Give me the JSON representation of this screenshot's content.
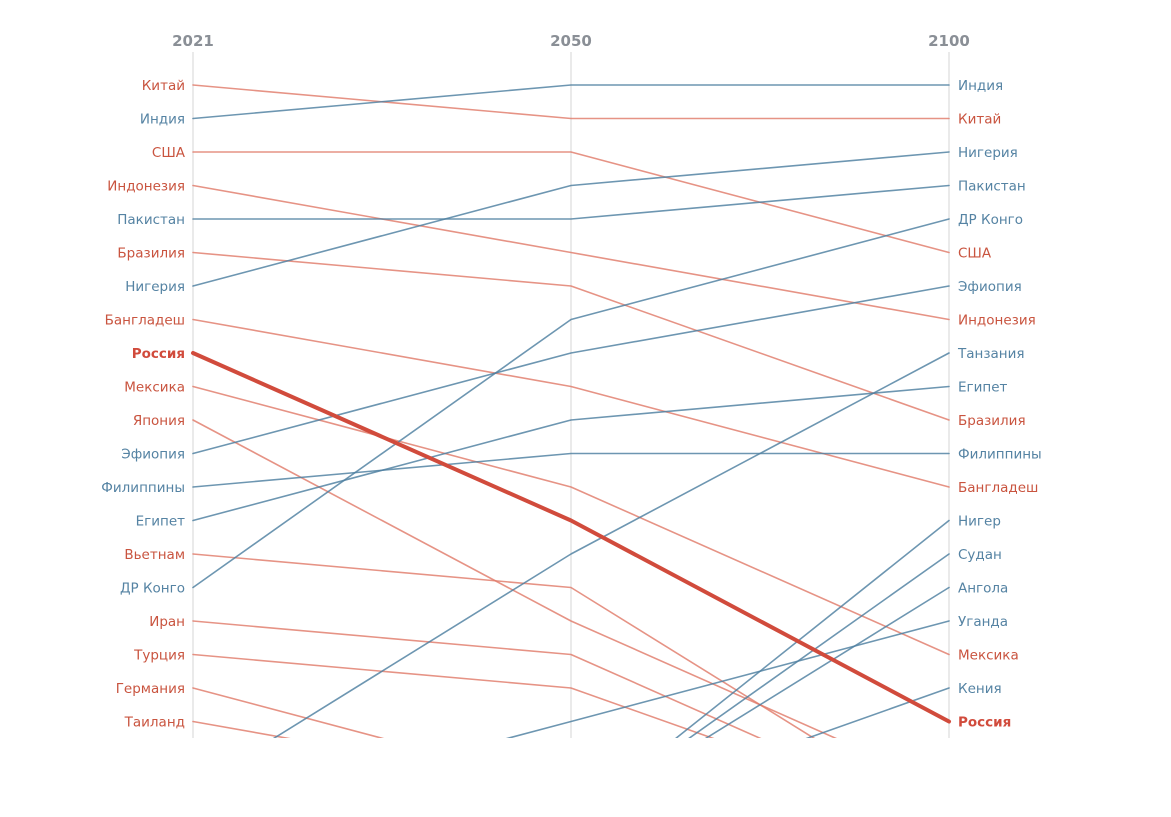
{
  "chart_data": {
    "type": "slope",
    "title": "",
    "years": [
      "2021",
      "2050",
      "2100"
    ],
    "y_axis": "rank (1 = largest population)",
    "colors": {
      "declining": "#e07b6a",
      "rising": "#4d7fa0",
      "highlight": "#d14b3c"
    },
    "highlight": "Россия",
    "series": [
      {
        "name": "Китай",
        "direction": "declining",
        "ranks": [
          1,
          2,
          2
        ]
      },
      {
        "name": "Индия",
        "direction": "rising",
        "ranks": [
          2,
          1,
          1
        ]
      },
      {
        "name": "США",
        "direction": "declining",
        "ranks": [
          3,
          3,
          6
        ]
      },
      {
        "name": "Индонезия",
        "direction": "declining",
        "ranks": [
          4,
          6,
          8
        ]
      },
      {
        "name": "Пакистан",
        "direction": "rising",
        "ranks": [
          5,
          5,
          4
        ]
      },
      {
        "name": "Бразилия",
        "direction": "declining",
        "ranks": [
          6,
          7,
          11
        ]
      },
      {
        "name": "Нигерия",
        "direction": "rising",
        "ranks": [
          7,
          4,
          3
        ]
      },
      {
        "name": "Бангладеш",
        "direction": "declining",
        "ranks": [
          8,
          10,
          13
        ]
      },
      {
        "name": "Россия",
        "direction": "declining",
        "ranks": [
          9,
          14,
          20
        ]
      },
      {
        "name": "Мексика",
        "direction": "declining",
        "ranks": [
          10,
          13,
          18
        ]
      },
      {
        "name": "Япония",
        "direction": "declining",
        "ranks": [
          11,
          17,
          22
        ]
      },
      {
        "name": "Эфиопия",
        "direction": "rising",
        "ranks": [
          12,
          9,
          7
        ]
      },
      {
        "name": "Филиппины",
        "direction": "rising",
        "ranks": [
          13,
          12,
          12
        ]
      },
      {
        "name": "Египет",
        "direction": "rising",
        "ranks": [
          14,
          11,
          10
        ]
      },
      {
        "name": "Вьетнам",
        "direction": "declining",
        "ranks": [
          15,
          16,
          23
        ]
      },
      {
        "name": "ДР Конго",
        "direction": "rising",
        "ranks": [
          16,
          8,
          5
        ]
      },
      {
        "name": "Иран",
        "direction": "declining",
        "ranks": [
          17,
          18,
          23
        ]
      },
      {
        "name": "Турция",
        "direction": "declining",
        "ranks": [
          18,
          19,
          23
        ]
      },
      {
        "name": "Германия",
        "direction": "declining",
        "ranks": [
          19,
          22,
          23
        ]
      },
      {
        "name": "Таиланд",
        "direction": "declining",
        "ranks": [
          20,
          22,
          23
        ]
      },
      {
        "name": "Танзания",
        "direction": "rising",
        "ranks": [
          22,
          15,
          9
        ]
      },
      {
        "name": "Нигер",
        "direction": "rising",
        "ranks": [
          23,
          23,
          14
        ]
      },
      {
        "name": "Судан",
        "direction": "rising",
        "ranks": [
          23,
          23,
          15
        ]
      },
      {
        "name": "Ангола",
        "direction": "rising",
        "ranks": [
          23,
          23,
          16
        ]
      },
      {
        "name": "Уганда",
        "direction": "rising",
        "ranks": [
          23,
          20,
          17
        ]
      },
      {
        "name": "Кения",
        "direction": "rising",
        "ranks": [
          23,
          23,
          19
        ]
      }
    ]
  }
}
